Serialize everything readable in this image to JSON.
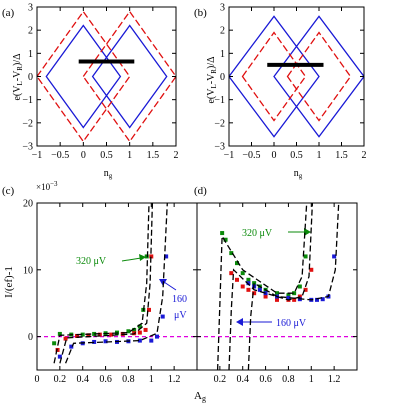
{
  "figure": {
    "panel_a": "(a)",
    "panel_b": "(b)",
    "panel_c": "(c)",
    "panel_d": "(d)",
    "ylabel_top_a": "e(V",
    "ylabel_top_a_sub": "L",
    "ylabel_top_a_mid": "-V",
    "ylabel_top_a_sub2": "R",
    "ylabel_top_a_end": ")/Δ",
    "ylabel_top_b": "e(V",
    "ylabel_top_b_sub": "L",
    "ylabel_top_b_mid": "-V",
    "ylabel_top_b_sub2": "R",
    "ylabel_top_b_end": ")/Δ",
    "xlabel_top_a": "n",
    "xlabel_top_a_sub": "g",
    "xlabel_top_b": "n",
    "xlabel_top_b_sub": "g",
    "ylabel_bottom": "I/(ef)-1",
    "xlabel_bottom": "A",
    "xlabel_bottom_sub": "g",
    "exponent_base": "×10",
    "exponent_power": "−3",
    "annot_320_c": "320 μV",
    "annot_160_c_line1": "160",
    "annot_160_c_line2": "μV",
    "annot_320_d": "320 μV",
    "annot_160_d": "160 μV"
  },
  "colors": {
    "blue": "#1a1ad6",
    "red": "#e01010",
    "green": "#0a8a0a",
    "magenta": "#e000e0",
    "black": "#000000"
  },
  "chart_data": [
    {
      "panel": "(a)",
      "type": "line",
      "xlabel": "n_g",
      "ylabel": "e(V_L-V_R)/Δ",
      "xlim": [
        -1,
        2
      ],
      "ylim": [
        -3,
        3
      ],
      "xticks": [
        "−1",
        "−0.5",
        "0",
        "0.5",
        "1",
        "1.5",
        "2"
      ],
      "yticks": [
        "−3",
        "−2",
        "−1",
        "0",
        "1",
        "2",
        "3"
      ],
      "series": [
        {
          "color": "blue",
          "style": "solid",
          "diamonds": [
            {
              "cx": 0,
              "half_width": 0.8,
              "half_height": 2.2
            },
            {
              "cx": 1,
              "half_width": 0.8,
              "half_height": 2.2
            }
          ]
        },
        {
          "color": "red",
          "style": "dashed",
          "diamonds": [
            {
              "cx": 0,
              "half_width": 1.0,
              "half_height": 2.8
            },
            {
              "cx": 1,
              "half_width": 1.0,
              "half_height": 2.8
            }
          ]
        },
        {
          "color": "black",
          "style": "thick",
          "segment": {
            "x": [
              -0.1,
              1.1
            ],
            "y": 0.65
          }
        }
      ]
    },
    {
      "panel": "(b)",
      "type": "line",
      "xlabel": "n_g",
      "ylabel": "e(V_L-V_R)/Δ",
      "xlim": [
        -1,
        2
      ],
      "ylim": [
        -3,
        3
      ],
      "xticks": [
        "−1",
        "−0.5",
        "0",
        "0.5",
        "1",
        "1.5",
        "2"
      ],
      "yticks": [
        "−3",
        "−2",
        "−1",
        "0",
        "1",
        "2",
        "3"
      ],
      "series": [
        {
          "color": "blue",
          "style": "solid",
          "diamonds": [
            {
              "cx": 0,
              "half_width": 1.0,
              "half_height": 2.6
            },
            {
              "cx": 1,
              "half_width": 1.0,
              "half_height": 2.6
            }
          ]
        },
        {
          "color": "red",
          "style": "dashed",
          "diamonds": [
            {
              "cx": 0,
              "half_width": 0.7,
              "half_height": 1.9
            },
            {
              "cx": 1,
              "half_width": 0.7,
              "half_height": 1.9
            }
          ]
        },
        {
          "color": "black",
          "style": "thick",
          "segment": {
            "x": [
              -0.15,
              1.1
            ],
            "y": 0.5
          }
        }
      ]
    },
    {
      "panel": "(c)",
      "type": "scatter",
      "xlabel": "A_g",
      "ylabel": "I/(ef)-1",
      "y_multiplier": "×10^-3",
      "xlim": [
        0,
        1.4
      ],
      "ylim": [
        -5,
        20
      ],
      "xticks": [
        "0",
        "0.2",
        "0.4",
        "0.6",
        "0.8",
        "1",
        "1.2"
      ],
      "yticks": [
        "0",
        "10",
        "20"
      ],
      "reference_line": {
        "y": 0,
        "color": "magenta",
        "style": "dashed"
      },
      "series": [
        {
          "name": "320 μV",
          "color": "green",
          "x": [
            0.15,
            0.2,
            0.3,
            0.4,
            0.5,
            0.6,
            0.7,
            0.8,
            0.85,
            0.9,
            0.93,
            0.96
          ],
          "y": [
            -1.0,
            0.4,
            0.3,
            0.3,
            0.4,
            0.5,
            0.6,
            0.8,
            1.0,
            1.5,
            4.0,
            12.0
          ]
        },
        {
          "name": "",
          "color": "red",
          "x": [
            0.18,
            0.25,
            0.35,
            0.45,
            0.55,
            0.65,
            0.75,
            0.85,
            0.9,
            0.95,
            0.98,
            1.0
          ],
          "y": [
            -2.0,
            -0.3,
            0.1,
            0.2,
            0.3,
            0.3,
            0.4,
            0.5,
            0.6,
            1.0,
            4.0,
            12.0
          ]
        },
        {
          "name": "160 μV",
          "color": "blue",
          "x": [
            0.2,
            0.3,
            0.4,
            0.5,
            0.6,
            0.7,
            0.8,
            0.9,
            1.0,
            1.05,
            1.1,
            1.13
          ],
          "y": [
            -3.0,
            -1.5,
            -1.0,
            -0.8,
            -0.7,
            -0.8,
            -0.7,
            -0.6,
            -0.6,
            0.0,
            3.0,
            12.0
          ]
        }
      ],
      "fits": [
        {
          "color": "black",
          "style": "dashed",
          "x": [
            0.15,
            0.2,
            0.8,
            0.92,
            0.96,
            0.98
          ],
          "y": [
            -4.0,
            0.2,
            0.6,
            2.0,
            8.0,
            20.0
          ]
        },
        {
          "color": "black",
          "style": "dashed",
          "x": [
            0.2,
            0.26,
            0.85,
            0.96,
            0.99,
            1.01
          ],
          "y": [
            -4.0,
            -0.2,
            0.4,
            2.0,
            8.0,
            20.0
          ]
        },
        {
          "color": "black",
          "style": "dashed",
          "x": [
            0.25,
            0.32,
            0.9,
            1.05,
            1.1,
            1.14
          ],
          "y": [
            -4.0,
            -1.0,
            -0.6,
            0.5,
            6.0,
            20.0
          ]
        }
      ]
    },
    {
      "panel": "(d)",
      "type": "scatter",
      "xlabel": "A_g",
      "ylabel": "I/(ef)-1",
      "xlim": [
        0,
        1.4
      ],
      "ylim": [
        -5,
        20
      ],
      "xticks": [
        "0.2",
        "0.4",
        "0.6",
        "0.8",
        "1",
        "1.2"
      ],
      "reference_line": {
        "y": 0,
        "color": "magenta",
        "style": "dashed"
      },
      "series": [
        {
          "name": "320 μV",
          "color": "green",
          "x": [
            0.22,
            0.25,
            0.3,
            0.35,
            0.4,
            0.45,
            0.5,
            0.55,
            0.6,
            0.7,
            0.8,
            0.85,
            0.9,
            0.95
          ],
          "y": [
            15.5,
            14.5,
            12.5,
            11.0,
            9.5,
            8.5,
            8.0,
            7.5,
            7.0,
            6.5,
            6.2,
            6.5,
            7.5,
            12.0
          ]
        },
        {
          "name": "",
          "color": "red",
          "x": [
            0.3,
            0.35,
            0.4,
            0.45,
            0.5,
            0.6,
            0.7,
            0.8,
            0.85,
            0.9,
            0.95,
            1.0
          ],
          "y": [
            9.5,
            8.5,
            7.5,
            7.0,
            6.5,
            6.0,
            5.5,
            5.5,
            5.5,
            6.0,
            7.0,
            10.0
          ]
        },
        {
          "name": "160 μV",
          "color": "blue",
          "x": [
            0.45,
            0.5,
            0.55,
            0.6,
            0.7,
            0.8,
            0.9,
            1.0,
            1.05,
            1.1,
            1.15,
            1.2
          ],
          "y": [
            8.0,
            7.5,
            7.0,
            6.5,
            6.0,
            5.8,
            5.6,
            5.5,
            5.5,
            5.6,
            6.0,
            12.0
          ]
        }
      ],
      "fits": [
        {
          "color": "black",
          "style": "dashed",
          "x": [
            0.18,
            0.2,
            0.22,
            0.4,
            0.7,
            0.85,
            0.92,
            0.96
          ],
          "y": [
            -5.0,
            5.0,
            15.0,
            10.0,
            6.5,
            6.5,
            9.0,
            20.0
          ]
        },
        {
          "color": "black",
          "style": "dashed",
          "x": [
            0.28,
            0.3,
            0.32,
            0.5,
            0.8,
            0.92,
            0.98,
            1.01
          ],
          "y": [
            -5.0,
            4.0,
            10.0,
            7.0,
            5.5,
            6.0,
            9.0,
            20.0
          ]
        },
        {
          "color": "black",
          "style": "dashed",
          "x": [
            0.45,
            0.47,
            0.5,
            0.7,
            1.0,
            1.15,
            1.21,
            1.24
          ],
          "y": [
            -5.0,
            3.0,
            8.0,
            6.0,
            5.5,
            6.0,
            10.0,
            20.0
          ]
        }
      ]
    }
  ]
}
